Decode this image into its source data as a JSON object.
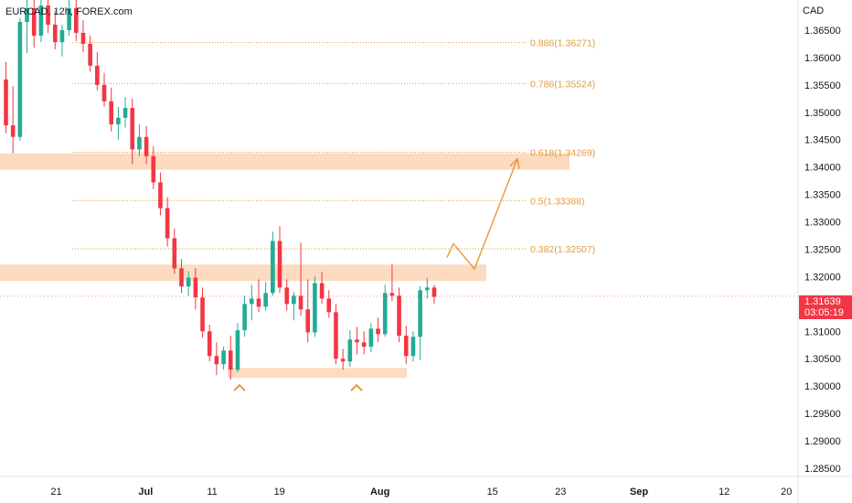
{
  "header": {
    "symbol_line": "EURCAD, 12h, FOREX.com",
    "currency": "CAD"
  },
  "last_price": {
    "value": "1.31639",
    "countdown": "03:05:19",
    "color": "#f23645"
  },
  "colors": {
    "up": "#22ab94",
    "down": "#f23645",
    "zone": "#fbd5b5",
    "fib": "#e39a3b",
    "arrow": "#e39a3b"
  },
  "chart_data": {
    "type": "candlestick",
    "title": "",
    "xlabel": "",
    "ylabel": "",
    "ylim": [
      1.2835,
      1.3705
    ],
    "y_ticks": [
      "1.36500",
      "1.36000",
      "1.35500",
      "1.35000",
      "1.34500",
      "1.34000",
      "1.33500",
      "1.33000",
      "1.32500",
      "1.32000",
      "1.31500",
      "1.31000",
      "1.30500",
      "1.30000",
      "1.29500",
      "1.29000",
      "1.28500"
    ],
    "x_ticks": [
      {
        "label": "21",
        "pos": 0.066
      },
      {
        "label": "Jul",
        "pos": 0.171
      },
      {
        "label": "11",
        "pos": 0.249
      },
      {
        "label": "19",
        "pos": 0.328
      },
      {
        "label": "Aug",
        "pos": 0.446
      },
      {
        "label": "15",
        "pos": 0.578
      },
      {
        "label": "23",
        "pos": 0.658
      },
      {
        "label": "Sep",
        "pos": 0.75
      },
      {
        "label": "12",
        "pos": 0.85
      },
      {
        "label": "20",
        "pos": 0.923
      }
    ],
    "fib_levels": [
      {
        "ratio": "0.886",
        "price": 1.36271,
        "label": "0.886(1.36271)"
      },
      {
        "ratio": "0.786",
        "price": 1.35524,
        "label": "0.786(1.35524)"
      },
      {
        "ratio": "0.618",
        "price": 1.34269,
        "label": "0.618(1.34269)"
      },
      {
        "ratio": "0.5",
        "price": 1.33388,
        "label": "0.5(1.33388)"
      },
      {
        "ratio": "0.382",
        "price": 1.32507,
        "label": "0.382(1.32507)"
      }
    ],
    "zones": [
      {
        "name": "resistance-upper",
        "low": 1.3395,
        "high": 1.3425
      },
      {
        "name": "resistance-middle",
        "low": 1.3192,
        "high": 1.3222
      },
      {
        "name": "support",
        "low": 1.3015,
        "high": 1.3033
      }
    ],
    "projection": [
      [
        1.3235,
        1.326
      ],
      [
        1.3214,
        1.3345
      ],
      [
        1.321,
        1.3415
      ]
    ],
    "candles": [
      [
        1.356,
        1.3592,
        1.3462,
        1.3476
      ],
      [
        1.3476,
        1.3548,
        1.3425,
        1.3455
      ],
      [
        1.3455,
        1.3672,
        1.3448,
        1.3665
      ],
      [
        1.3665,
        1.372,
        1.3608,
        1.369
      ],
      [
        1.369,
        1.3712,
        1.3618,
        1.364
      ],
      [
        1.364,
        1.3705,
        1.3628,
        1.3695
      ],
      [
        1.3695,
        1.3712,
        1.3645,
        1.366
      ],
      [
        1.366,
        1.3685,
        1.3615,
        1.3628
      ],
      [
        1.3628,
        1.366,
        1.3602,
        1.365
      ],
      [
        1.365,
        1.3705,
        1.364,
        1.369
      ],
      [
        1.369,
        1.3712,
        1.363,
        1.3645
      ],
      [
        1.3645,
        1.3668,
        1.361,
        1.3625
      ],
      [
        1.3625,
        1.364,
        1.3574,
        1.3585
      ],
      [
        1.3585,
        1.361,
        1.354,
        1.355
      ],
      [
        1.355,
        1.3572,
        1.351,
        1.352
      ],
      [
        1.352,
        1.3545,
        1.3465,
        1.3478
      ],
      [
        1.3478,
        1.351,
        1.345,
        1.349
      ],
      [
        1.349,
        1.3528,
        1.3472,
        1.3508
      ],
      [
        1.3508,
        1.3525,
        1.3405,
        1.3432
      ],
      [
        1.3432,
        1.3478,
        1.342,
        1.3455
      ],
      [
        1.3455,
        1.3475,
        1.3405,
        1.342
      ],
      [
        1.342,
        1.3438,
        1.336,
        1.3372
      ],
      [
        1.3372,
        1.339,
        1.3312,
        1.3325
      ],
      [
        1.3325,
        1.3345,
        1.3255,
        1.327
      ],
      [
        1.327,
        1.3288,
        1.3205,
        1.3215
      ],
      [
        1.3215,
        1.3232,
        1.317,
        1.3182
      ],
      [
        1.3182,
        1.321,
        1.3165,
        1.3198
      ],
      [
        1.3198,
        1.3215,
        1.314,
        1.3162
      ],
      [
        1.3162,
        1.318,
        1.3088,
        1.31
      ],
      [
        1.31,
        1.3112,
        1.3045,
        1.3055
      ],
      [
        1.3055,
        1.308,
        1.302,
        1.304
      ],
      [
        1.304,
        1.3072,
        1.303,
        1.3065
      ],
      [
        1.3065,
        1.3092,
        1.3012,
        1.303
      ],
      [
        1.303,
        1.3115,
        1.3025,
        1.3102
      ],
      [
        1.3102,
        1.3165,
        1.309,
        1.315
      ],
      [
        1.315,
        1.3185,
        1.312,
        1.316
      ],
      [
        1.316,
        1.3195,
        1.3135,
        1.3145
      ],
      [
        1.3145,
        1.319,
        1.3138,
        1.317
      ],
      [
        1.317,
        1.3282,
        1.3165,
        1.3265
      ],
      [
        1.3265,
        1.3292,
        1.317,
        1.318
      ],
      [
        1.318,
        1.3195,
        1.3138,
        1.315
      ],
      [
        1.315,
        1.3172,
        1.312,
        1.3165
      ],
      [
        1.3165,
        1.3262,
        1.3128,
        1.314
      ],
      [
        1.314,
        1.3195,
        1.308,
        1.3098
      ],
      [
        1.3098,
        1.32,
        1.309,
        1.3188
      ],
      [
        1.3188,
        1.3208,
        1.315,
        1.316
      ],
      [
        1.316,
        1.3175,
        1.3125,
        1.3135
      ],
      [
        1.3135,
        1.315,
        1.304,
        1.305
      ],
      [
        1.305,
        1.3068,
        1.303,
        1.3045
      ],
      [
        1.3045,
        1.3102,
        1.3035,
        1.3085
      ],
      [
        1.3085,
        1.3108,
        1.3058,
        1.308
      ],
      [
        1.308,
        1.31,
        1.3058,
        1.3072
      ],
      [
        1.3072,
        1.3115,
        1.3062,
        1.3105
      ],
      [
        1.3105,
        1.3125,
        1.308,
        1.3095
      ],
      [
        1.3095,
        1.3185,
        1.309,
        1.317
      ],
      [
        1.317,
        1.3222,
        1.3155,
        1.3165
      ],
      [
        1.3165,
        1.318,
        1.308,
        1.3092
      ],
      [
        1.3092,
        1.311,
        1.304,
        1.3055
      ],
      [
        1.3055,
        1.31,
        1.3045,
        1.309
      ],
      [
        1.309,
        1.3182,
        1.3048,
        1.3175
      ],
      [
        1.3175,
        1.3198,
        1.316,
        1.318
      ],
      [
        1.318,
        1.3185,
        1.315,
        1.3163
      ]
    ]
  }
}
